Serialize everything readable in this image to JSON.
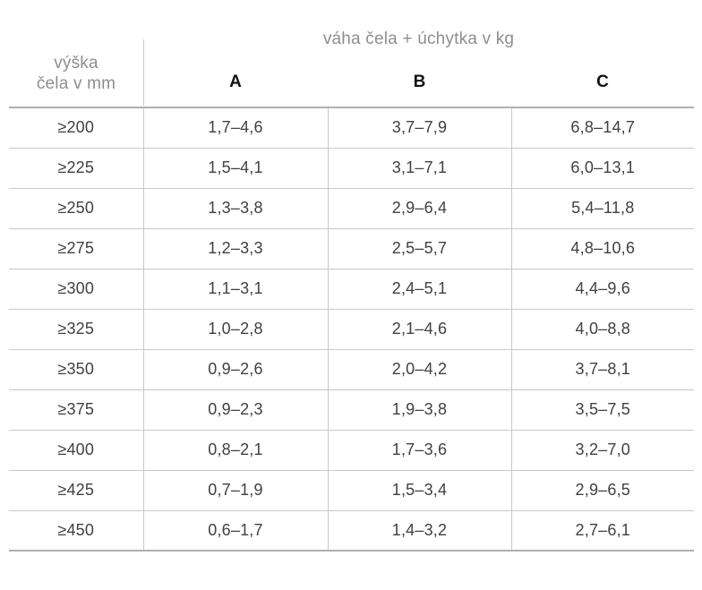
{
  "table": {
    "corner_header": {
      "line1": "výška",
      "line2": "čela v mm"
    },
    "group_header": "váha čela + úchytka v kg",
    "columns": [
      "A",
      "B",
      "C"
    ],
    "rows": [
      {
        "label": "≥200",
        "values": [
          "1,7–4,6",
          "3,7–7,9",
          "6,8–14,7"
        ]
      },
      {
        "label": "≥225",
        "values": [
          "1,5–4,1",
          "3,1–7,1",
          "6,0–13,1"
        ]
      },
      {
        "label": "≥250",
        "values": [
          "1,3–3,8",
          "2,9–6,4",
          "5,4–11,8"
        ]
      },
      {
        "label": "≥275",
        "values": [
          "1,2–3,3",
          "2,5–5,7",
          "4,8–10,6"
        ]
      },
      {
        "label": "≥300",
        "values": [
          "1,1–3,1",
          "2,4–5,1",
          "4,4–9,6"
        ]
      },
      {
        "label": "≥325",
        "values": [
          "1,0–2,8",
          "2,1–4,6",
          "4,0–8,8"
        ]
      },
      {
        "label": "≥350",
        "values": [
          "0,9–2,6",
          "2,0–4,2",
          "3,7–8,1"
        ]
      },
      {
        "label": "≥375",
        "values": [
          "0,9–2,3",
          "1,9–3,8",
          "3,5–7,5"
        ]
      },
      {
        "label": "≥400",
        "values": [
          "0,8–2,1",
          "1,7–3,6",
          "3,2–7,0"
        ]
      },
      {
        "label": "≥425",
        "values": [
          "0,7–1,9",
          "1,5–3,4",
          "2,9–6,5"
        ]
      },
      {
        "label": "≥450",
        "values": [
          "0,6–1,7",
          "1,4–3,2",
          "2,7–6,1"
        ]
      }
    ]
  },
  "colors": {
    "header_text": "#8e8e8e",
    "column_letter_text": "#121212",
    "cell_text": "#414141",
    "grid_line": "#c9c9c9",
    "rule_line": "#b0b0b0"
  }
}
